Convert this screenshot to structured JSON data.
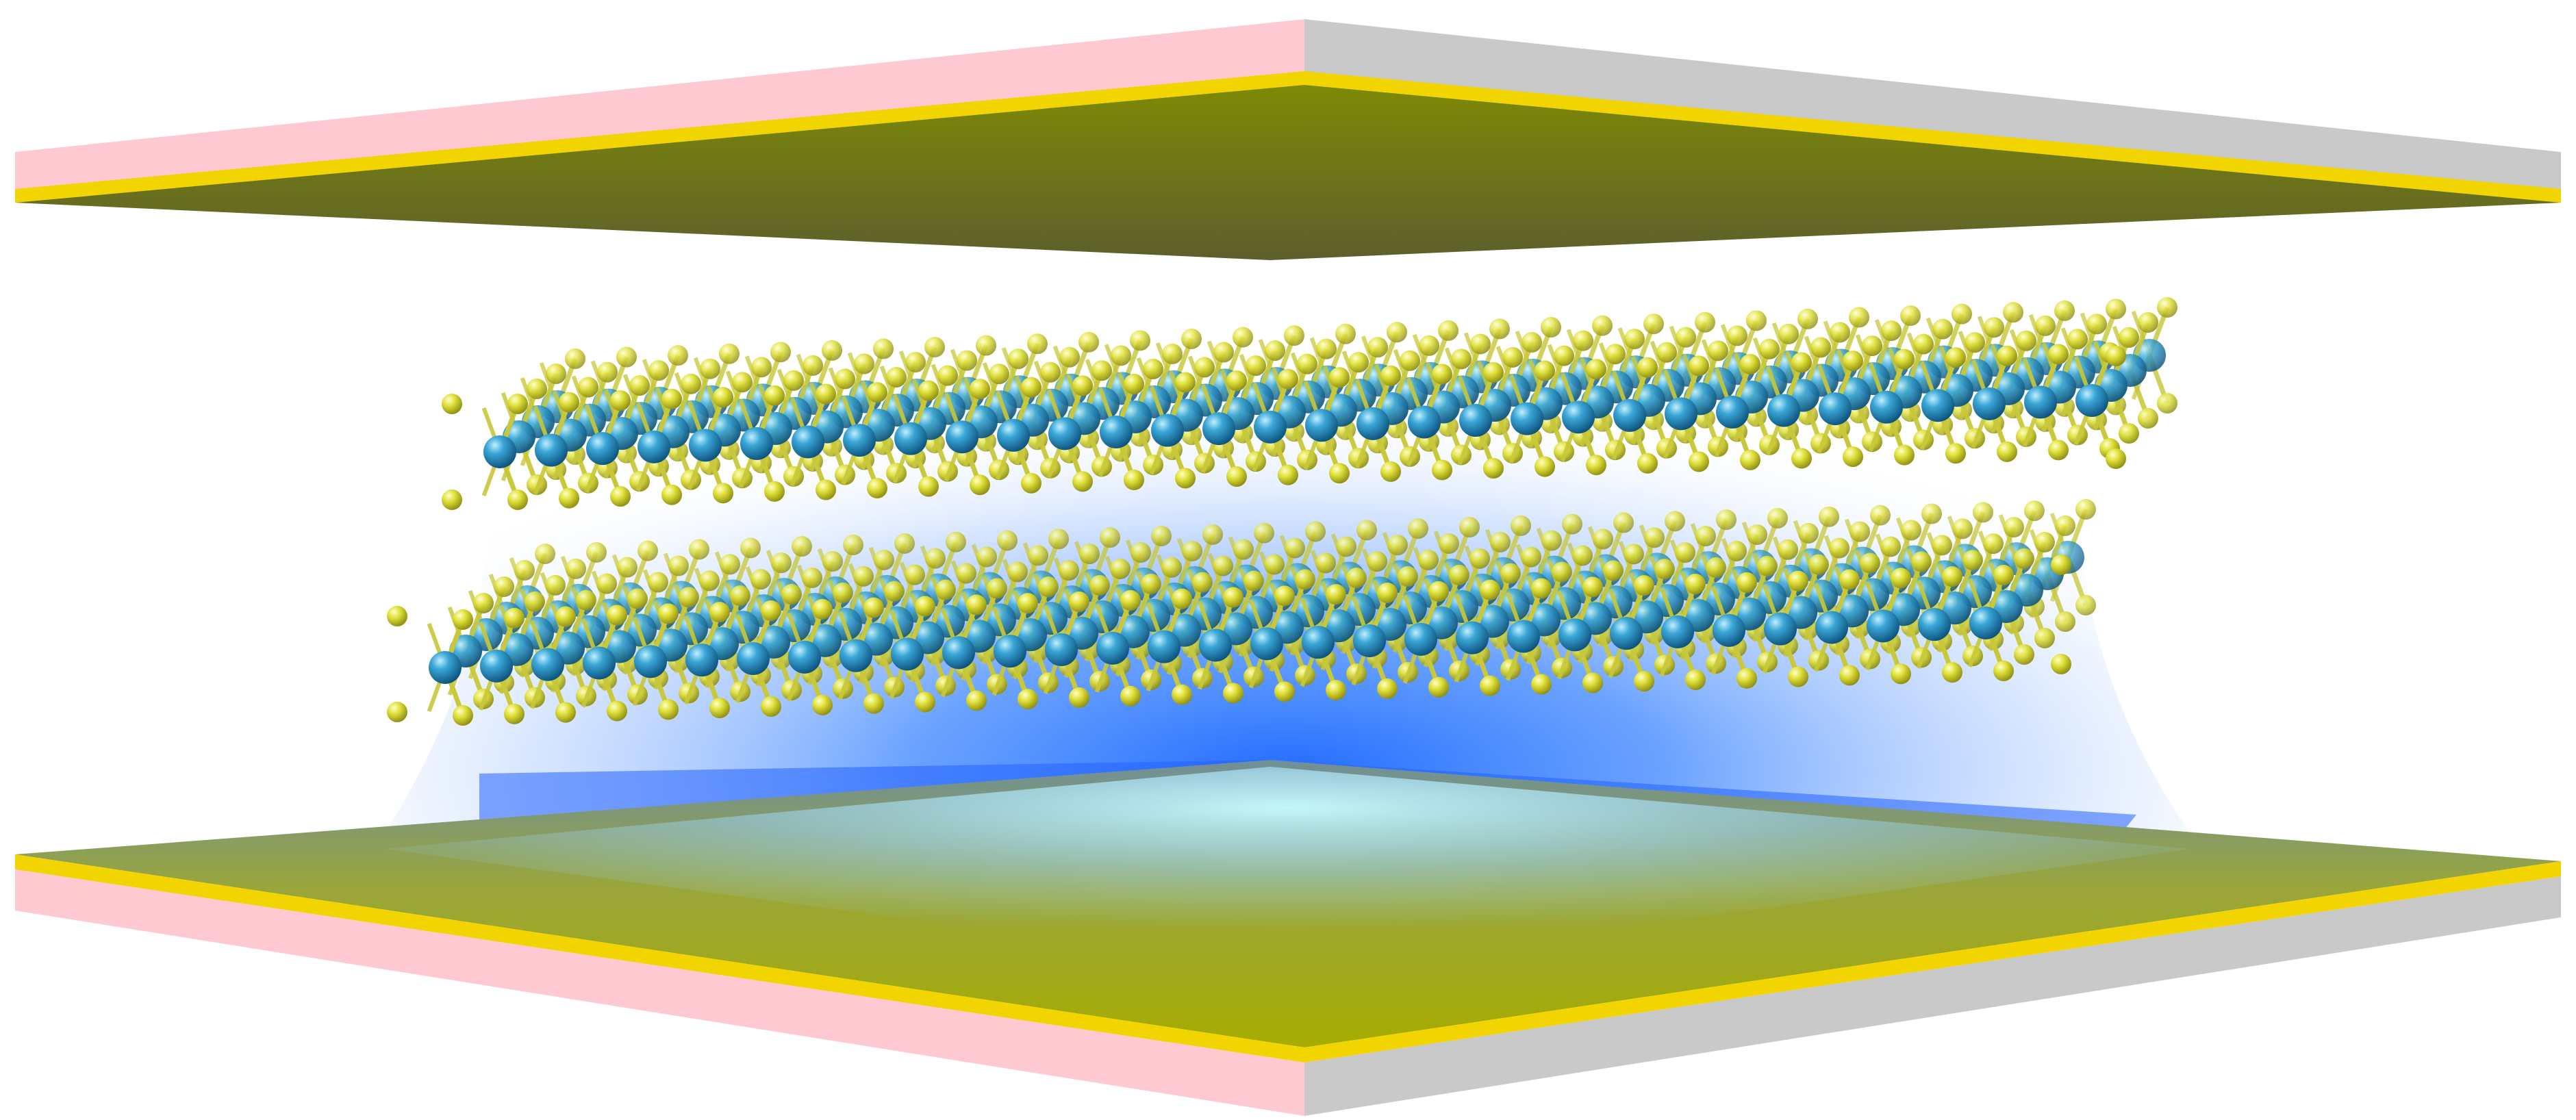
{
  "scene": {
    "subject": "bilayer-crystal-between-mirror-plates",
    "plates": {
      "top_face_color": "#6f7a05",
      "bottom_face_color": "#a3aa00",
      "gold_edge_color": "#f2d500",
      "left_side_color": "#ffc9d1",
      "right_side_color": "#c8c8c8"
    },
    "field_glow": {
      "core_color": "#1f6dff",
      "light_color": "#c9f7ff"
    },
    "layers": [
      {
        "position": "upper"
      },
      {
        "position": "lower"
      }
    ],
    "atoms": {
      "metal_color": "#2a8fc0",
      "chalcogen_color": "#d6d62a",
      "bond_color": "#c8c83a"
    }
  }
}
